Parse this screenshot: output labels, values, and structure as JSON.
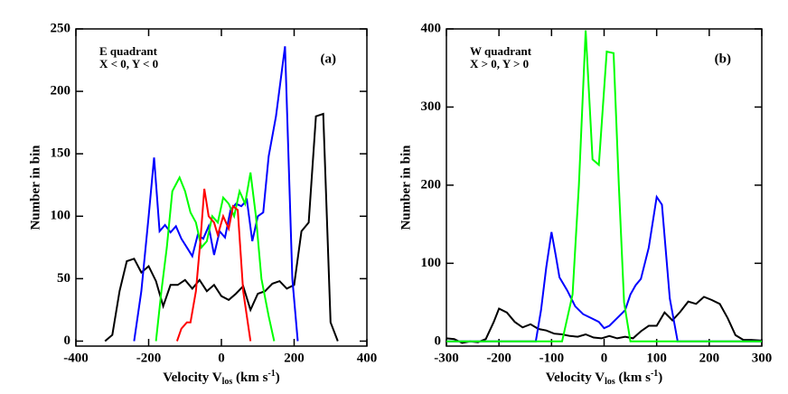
{
  "chart_data": [
    {
      "type": "line",
      "x_label": [
        "Velocity V",
        "los",
        " (km s",
        "-1",
        ")"
      ],
      "y_label": "Number in bin",
      "annotations": [
        "E quadrant",
        "X < 0, Y < 0",
        "(a)"
      ],
      "xlim": [
        -400,
        400
      ],
      "xticks": [
        -400,
        -200,
        0,
        200,
        400
      ],
      "ylim": [
        -4,
        250
      ],
      "yticks": [
        0,
        50,
        100,
        150,
        200,
        250
      ],
      "series": [
        {
          "color": "#000000",
          "x": [
            -320,
            -300,
            -280,
            -260,
            -240,
            -220,
            -200,
            -180,
            -160,
            -140,
            -120,
            -100,
            -80,
            -60,
            -40,
            -20,
            0,
            20,
            40,
            60,
            80,
            100,
            120,
            140,
            160,
            180,
            200,
            220,
            240,
            260,
            280,
            300,
            320
          ],
          "values": [
            0,
            5,
            40,
            64,
            66,
            55,
            60,
            48,
            28,
            45,
            45,
            49,
            42,
            49,
            40,
            45,
            36,
            33,
            38,
            44,
            25,
            38,
            40,
            46,
            48,
            42,
            45,
            88,
            95,
            180,
            182,
            15,
            0
          ]
        },
        {
          "color": "#0000ff",
          "x": [
            -240,
            -220,
            -200,
            -185,
            -170,
            -155,
            -140,
            -125,
            -110,
            -95,
            -80,
            -65,
            -50,
            -35,
            -20,
            -5,
            10,
            25,
            40,
            55,
            70,
            85,
            100,
            115,
            130,
            150,
            175,
            195,
            210
          ],
          "values": [
            0,
            40,
            100,
            147,
            88,
            93,
            87,
            92,
            82,
            75,
            68,
            85,
            82,
            92,
            69,
            88,
            83,
            105,
            110,
            108,
            113,
            80,
            100,
            103,
            148,
            180,
            236,
            50,
            0
          ]
        },
        {
          "color": "#00ff00",
          "x": [
            -180,
            -165,
            -150,
            -135,
            -115,
            -100,
            -85,
            -70,
            -55,
            -40,
            -25,
            -10,
            5,
            20,
            35,
            50,
            65,
            80,
            95,
            110,
            130,
            145
          ],
          "values": [
            0,
            40,
            75,
            120,
            131,
            120,
            103,
            95,
            75,
            80,
            100,
            95,
            115,
            110,
            100,
            120,
            110,
            135,
            100,
            50,
            20,
            0
          ]
        },
        {
          "color": "#ff0000",
          "x": [
            -122,
            -110,
            -95,
            -85,
            -70,
            -58,
            -47,
            -35,
            -20,
            -10,
            5,
            20,
            32,
            45,
            60,
            80
          ],
          "values": [
            0,
            10,
            15,
            15,
            40,
            80,
            122,
            100,
            95,
            85,
            100,
            90,
            108,
            105,
            40,
            0
          ]
        }
      ]
    },
    {
      "type": "line",
      "x_label": [
        "Velocity V",
        "los",
        " (km s",
        "-1",
        ")"
      ],
      "y_label": "Number in bin",
      "annotations": [
        "W quadrant",
        "X > 0, Y > 0",
        "(b)"
      ],
      "xlim": [
        -300,
        300
      ],
      "xticks": [
        -300,
        -200,
        -100,
        0,
        100,
        200,
        300
      ],
      "ylim": [
        -6,
        400
      ],
      "yticks": [
        0,
        100,
        200,
        300,
        400
      ],
      "series": [
        {
          "color": "#000000",
          "x": [
            -300,
            -285,
            -270,
            -255,
            -240,
            -225,
            -210,
            -200,
            -185,
            -170,
            -155,
            -140,
            -125,
            -110,
            -95,
            -80,
            -65,
            -50,
            -35,
            -20,
            -5,
            10,
            25,
            40,
            55,
            70,
            85,
            100,
            115,
            130,
            145,
            160,
            175,
            190,
            205,
            220,
            235,
            250,
            265,
            280,
            300
          ],
          "values": [
            4,
            3,
            -2,
            0,
            -1,
            3,
            25,
            42,
            37,
            25,
            18,
            22,
            16,
            14,
            10,
            9,
            7,
            6,
            9,
            5,
            4,
            7,
            4,
            6,
            4,
            13,
            20,
            20,
            37,
            27,
            38,
            51,
            48,
            57,
            53,
            48,
            30,
            8,
            2,
            2,
            1
          ]
        },
        {
          "color": "#0000ff",
          "x": [
            -300,
            -150,
            -130,
            -120,
            -110,
            -100,
            -92,
            -85,
            -70,
            -55,
            -40,
            -25,
            -10,
            0,
            10,
            25,
            40,
            50,
            60,
            70,
            85,
            100,
            110,
            125,
            140,
            160,
            300
          ],
          "values": [
            0,
            0,
            0,
            40,
            95,
            140,
            110,
            82,
            65,
            45,
            35,
            30,
            25,
            17,
            20,
            30,
            40,
            60,
            72,
            80,
            120,
            185,
            175,
            55,
            0,
            0,
            0
          ]
        },
        {
          "color": "#00ff00",
          "x": [
            -300,
            -80,
            -60,
            -48,
            -35,
            -22,
            -10,
            5,
            18,
            28,
            38,
            50,
            300
          ],
          "values": [
            0,
            0,
            60,
            200,
            398,
            233,
            226,
            371,
            369,
            200,
            50,
            0,
            0
          ]
        }
      ]
    }
  ]
}
